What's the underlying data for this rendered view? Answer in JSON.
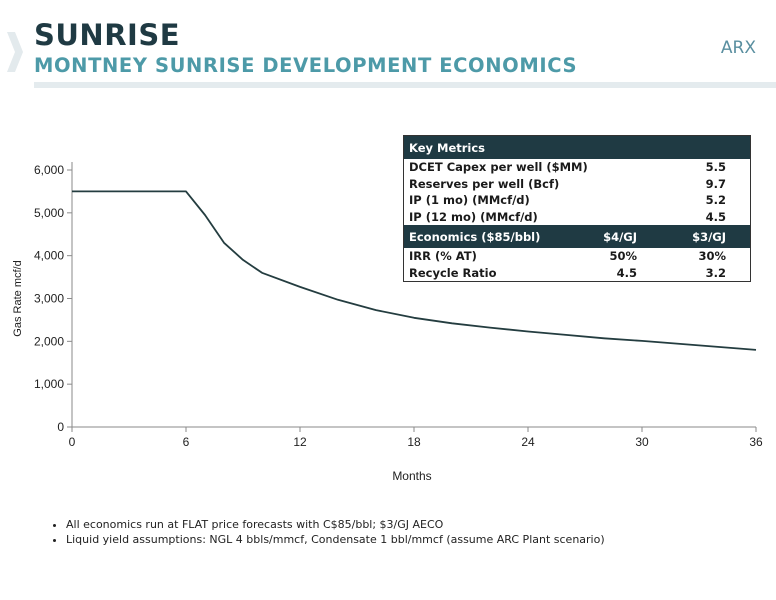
{
  "header": {
    "title": "SUNRISE",
    "subtitle": "MONTNEY SUNRISE DEVELOPMENT ECONOMICS",
    "brand": "ARX"
  },
  "colors": {
    "primary": "#1f3a43",
    "accent": "#4d9aa8",
    "curve": "#243d40"
  },
  "chart_data": {
    "type": "line",
    "xlabel": "Months",
    "ylabel": "Gas Rate mcf/d",
    "xlim": [
      0,
      36
    ],
    "ylim": [
      0,
      6000
    ],
    "x_ticks": [
      0,
      6,
      12,
      18,
      24,
      30,
      36
    ],
    "y_ticks": [
      0,
      1000,
      2000,
      3000,
      4000,
      5000,
      6000
    ],
    "y_tick_labels": [
      "0",
      "1,000",
      "2,000",
      "3,000",
      "4,000",
      "5,000",
      "6,000"
    ],
    "grid": false,
    "series": [
      {
        "x": [
          0,
          6,
          7,
          8,
          9,
          10,
          12,
          14,
          16,
          18,
          20,
          22,
          24,
          26,
          28,
          30,
          32,
          34,
          36
        ],
        "y": [
          5500,
          5500,
          4950,
          4300,
          3900,
          3600,
          3270,
          2970,
          2730,
          2550,
          2420,
          2320,
          2230,
          2150,
          2070,
          2010,
          1940,
          1870,
          1800
        ]
      }
    ]
  },
  "metrics": {
    "title": "Key Metrics",
    "rows": [
      {
        "label": "DCET Capex per well ($MM)",
        "value": "5.5"
      },
      {
        "label": "Reserves  per well (Bcf)",
        "value": "9.7"
      },
      {
        "label": "IP (1 mo) (MMcf/d)",
        "value": "5.2"
      },
      {
        "label": "IP (12 mo) (MMcf/d)",
        "value": "4.5"
      }
    ],
    "econ_header": {
      "label": "Economics ($85/bbl)",
      "col1": "$4/GJ",
      "col2": "$3/GJ"
    },
    "econ_rows": [
      {
        "label": "IRR (% AT)",
        "col1": "50%",
        "col2": "30%"
      },
      {
        "label": "Recycle Ratio",
        "col1": "4.5",
        "col2": "3.2"
      }
    ]
  },
  "notes": [
    "All economics run at FLAT price forecasts with C$85/bbl; $3/GJ AECO",
    "Liquid yield assumptions: NGL 4 bbls/mmcf, Condensate 1 bbl/mmcf (assume ARC Plant scenario)"
  ]
}
